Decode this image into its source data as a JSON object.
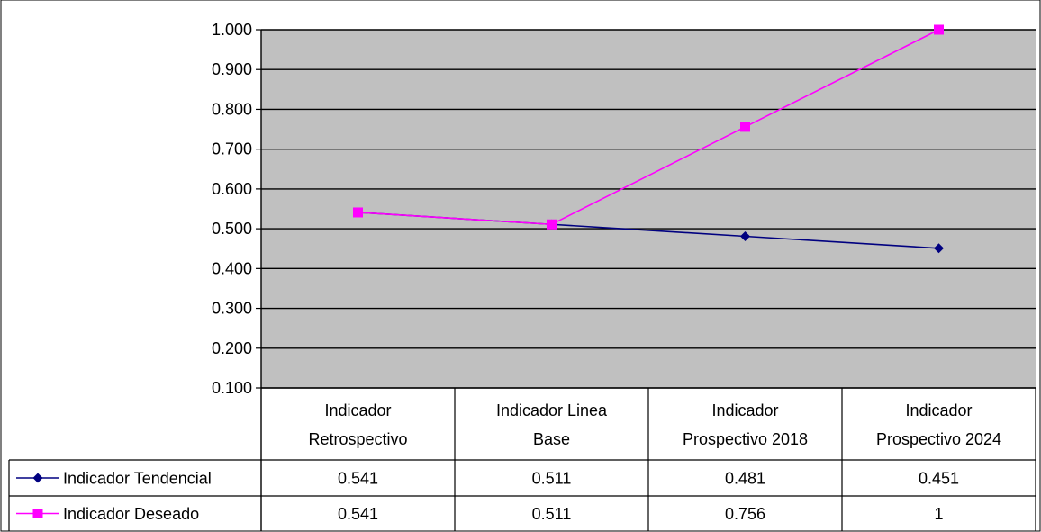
{
  "chart_data": {
    "type": "line",
    "title": "",
    "xlabel": "",
    "ylabel": "",
    "categories": [
      [
        "Indicador",
        "Retrospectivo"
      ],
      [
        "Indicador Linea",
        "Base"
      ],
      [
        "Indicador",
        "Prospectivo 2018"
      ],
      [
        "Indicador",
        "Prospectivo 2024"
      ]
    ],
    "ylim": [
      0.1,
      1.0
    ],
    "yticks": [
      "0.100",
      "0.200",
      "0.300",
      "0.400",
      "0.500",
      "0.600",
      "0.700",
      "0.800",
      "0.900",
      "1.000"
    ],
    "grid": true,
    "plot_background": "#c0c0c0",
    "legend": "data-table",
    "series": [
      {
        "name": "Indicador Tendencial",
        "color": "#000080",
        "marker": "diamond",
        "values": [
          0.541,
          0.511,
          0.481,
          0.451
        ],
        "labels": [
          "0.541",
          "0.511",
          "0.481",
          "0.451"
        ]
      },
      {
        "name": "Indicador Deseado",
        "color": "#ff00ff",
        "marker": "square",
        "values": [
          0.541,
          0.511,
          0.756,
          1
        ],
        "labels": [
          "0.541",
          "0.511",
          "0.756",
          "1"
        ]
      }
    ]
  }
}
